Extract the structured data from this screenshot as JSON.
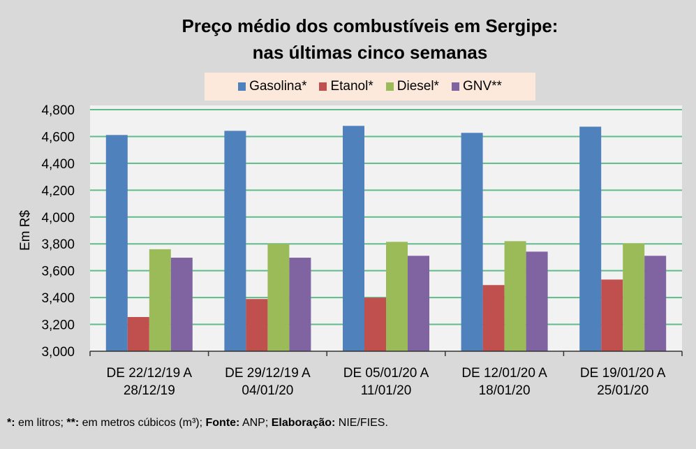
{
  "chart_data": {
    "type": "bar",
    "title": [
      "Preço médio dos combustíveis em Sergipe:",
      "nas últimas cinco semanas"
    ],
    "ylabel": "Em R$",
    "xlabel": "",
    "ylim": [
      3000,
      4800
    ],
    "yticks": [
      3000,
      3200,
      3400,
      3600,
      3800,
      4000,
      4200,
      4400,
      4600,
      4800
    ],
    "ytick_labels": [
      "3,000",
      "3,200",
      "3,400",
      "3,600",
      "3,800",
      "4,000",
      "4,200",
      "4,400",
      "4,600",
      "4,800"
    ],
    "grid": true,
    "legend_position": "top",
    "categories": [
      [
        "DE 22/12/19 A",
        "28/12/19"
      ],
      [
        "DE 29/12/19 A",
        "04/01/20"
      ],
      [
        "DE 05/01/20 A",
        "11/01/20"
      ],
      [
        "DE 12/01/20 A",
        "18/01/20"
      ],
      [
        "DE 19/01/20 A",
        "25/01/20"
      ]
    ],
    "series": [
      {
        "name": "Gasolina*",
        "color": "#4f81bd",
        "values": [
          4611,
          4642,
          4679,
          4627,
          4673
        ]
      },
      {
        "name": "Etanol*",
        "color": "#c0504d",
        "values": [
          3255,
          3389,
          3399,
          3493,
          3534
        ]
      },
      {
        "name": "Diesel*",
        "color": "#9bbb59",
        "values": [
          3760,
          3800,
          3815,
          3820,
          3804
        ]
      },
      {
        "name": "GNV**",
        "color": "#8064a2",
        "values": [
          3697,
          3697,
          3711,
          3742,
          3711
        ]
      }
    ]
  },
  "footnote": {
    "k1": "*:",
    "t1": " em litros; ",
    "k2": "**:",
    "t2": " em metros cúbicos (m³); ",
    "k3": "Fonte:",
    "t3": " ANP; ",
    "k4": "Elaboração:",
    "t4": " NIE/FIES."
  }
}
